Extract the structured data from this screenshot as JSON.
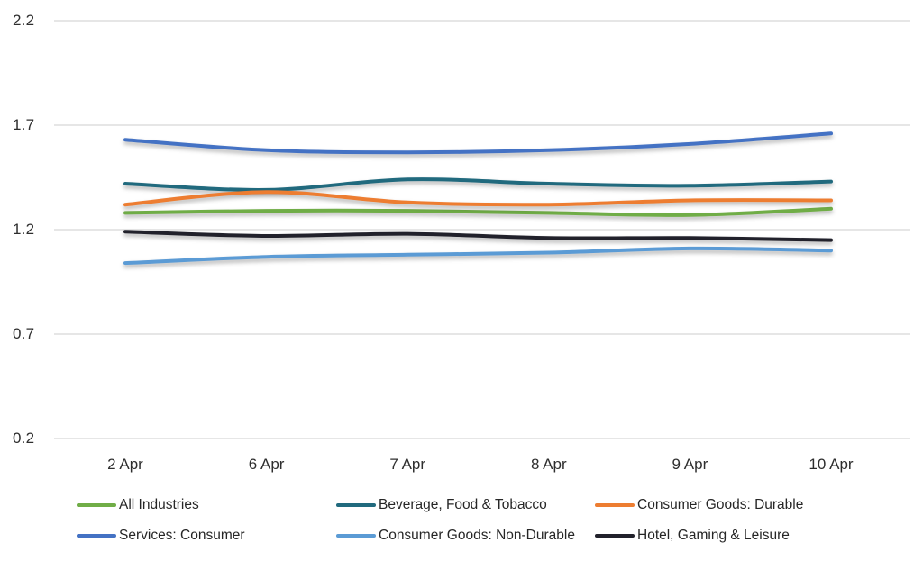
{
  "chart_data": {
    "type": "line",
    "smoothed": true,
    "title": "",
    "xlabel": "",
    "ylabel": "",
    "categories": [
      "2 Apr",
      "6 Apr",
      "7 Apr",
      "8 Apr",
      "9 Apr",
      "10 Apr"
    ],
    "series": [
      {
        "name": "All Industries",
        "color": "#70AD47",
        "values": [
          1.28,
          1.29,
          1.29,
          1.28,
          1.27,
          1.3
        ]
      },
      {
        "name": "Beverage, Food & Tobacco",
        "color": "#216A7E",
        "values": [
          1.42,
          1.39,
          1.44,
          1.42,
          1.41,
          1.43
        ]
      },
      {
        "name": "Consumer Goods: Durable",
        "color": "#ED7D31",
        "values": [
          1.32,
          1.38,
          1.33,
          1.32,
          1.34,
          1.34
        ]
      },
      {
        "name": "Services: Consumer",
        "color": "#4472C4",
        "values": [
          1.63,
          1.58,
          1.57,
          1.58,
          1.61,
          1.66
        ]
      },
      {
        "name": "Consumer Goods: Non-Durable",
        "color": "#5B9BD5",
        "values": [
          1.04,
          1.07,
          1.08,
          1.09,
          1.11,
          1.1
        ]
      },
      {
        "name": "Hotel, Gaming & Leisure",
        "color": "#21212B",
        "values": [
          1.19,
          1.17,
          1.18,
          1.16,
          1.16,
          1.15
        ]
      }
    ],
    "y_ticks": [
      "2.2",
      "1.7",
      "1.2",
      "0.7",
      "0.2"
    ],
    "ylim": [
      0.2,
      2.2
    ],
    "grid": true,
    "legend_position": "bottom",
    "legend_rows": [
      [
        "All Industries",
        "Beverage, Food & Tobacco",
        "Consumer Goods: Durable"
      ],
      [
        "Services: Consumer",
        "Consumer Goods: Non-Durable",
        "Hotel, Gaming & Leisure"
      ]
    ]
  },
  "colors": {
    "background": "#FFFFFF",
    "gridline": "#E6E6E6",
    "axis_text": "#2E2E2E",
    "legend_text": "#262626"
  }
}
